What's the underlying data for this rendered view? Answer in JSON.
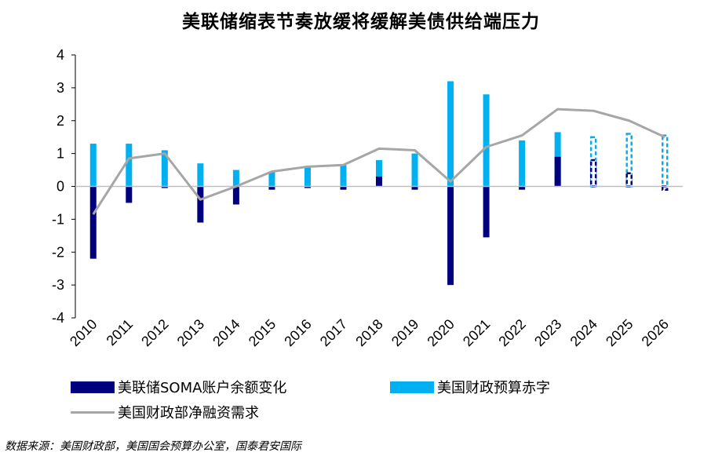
{
  "chart_data": {
    "type": "bar",
    "title": "美联储缩表节奏放缓将缓解美债供给端压力",
    "categories": [
      "2010",
      "2011",
      "2012",
      "2013",
      "2014",
      "2015",
      "2016",
      "2017",
      "2018",
      "2019",
      "2020",
      "2021",
      "2022",
      "2023",
      "2024",
      "2025",
      "2026"
    ],
    "ylim": [
      -4,
      4
    ],
    "yticks": [
      4,
      3,
      2,
      1,
      0,
      -1,
      -2,
      -3,
      -4
    ],
    "series": [
      {
        "name": "美联储SOMA账户余额变化",
        "kind": "bar",
        "color": "#00007f",
        "values": [
          -2.2,
          -0.5,
          -0.05,
          -1.1,
          -0.55,
          -0.1,
          -0.05,
          -0.1,
          0.3,
          -0.1,
          -3.0,
          -1.55,
          -0.1,
          0.9,
          0.8,
          0.4,
          -0.1
        ]
      },
      {
        "name": "美国财政预算赤字",
        "kind": "bar",
        "color": "#00b0f0",
        "values": [
          1.3,
          1.3,
          1.1,
          0.7,
          0.5,
          0.45,
          0.6,
          0.65,
          0.8,
          1.0,
          3.2,
          2.8,
          1.4,
          1.65,
          1.5,
          1.6,
          1.55
        ]
      },
      {
        "name": "美国财政部净融资需求",
        "kind": "line",
        "color": "#a6a6a6",
        "values": [
          -0.85,
          0.85,
          1.0,
          -0.4,
          0.0,
          0.45,
          0.6,
          0.65,
          1.15,
          1.1,
          0.15,
          1.2,
          1.55,
          2.35,
          2.3,
          2.0,
          1.5
        ]
      }
    ],
    "projected_from": "2024",
    "grid": false,
    "legend_position": "bottom"
  },
  "source": "数据来源：美国财政部，美国国会预算办公室，国泰君安国际"
}
